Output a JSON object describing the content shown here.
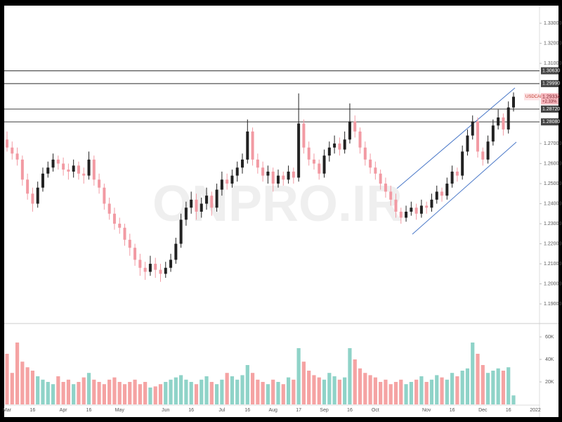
{
  "chart_data": {
    "type": "candlestick",
    "symbol": "USDCAD",
    "change": "+2.33%",
    "watermark": "ONPRO.IR",
    "last": {
      "value": 1.29334,
      "label": "1.29334"
    },
    "up_color": "#222222",
    "down_color": "#f29aa3",
    "volume_up_color": "#8fd3c8",
    "volume_down_color": "#f5a3a3",
    "ylim": [
      1.1809,
      1.3388
    ],
    "yticks": [
      {
        "value": 1.33,
        "label": "1.33000"
      },
      {
        "value": 1.32,
        "label": "1.32000"
      },
      {
        "value": 1.31,
        "label": "1.31000"
      },
      {
        "value": 1.27,
        "label": "1.27000"
      },
      {
        "value": 1.26,
        "label": "1.26000"
      },
      {
        "value": 1.25,
        "label": "1.25000"
      },
      {
        "value": 1.24,
        "label": "1.24000"
      },
      {
        "value": 1.23,
        "label": "1.23000"
      },
      {
        "value": 1.22,
        "label": "1.22000"
      },
      {
        "value": 1.21,
        "label": "1.21000"
      },
      {
        "value": 1.2,
        "label": "1.20000"
      },
      {
        "value": 1.19,
        "label": "1.19000"
      }
    ],
    "levels": [
      {
        "value": 1.3063,
        "label": "1.30630"
      },
      {
        "value": 1.2999,
        "label": "1.29990"
      },
      {
        "value": 1.2872,
        "label": "1.28720"
      },
      {
        "value": 1.2808,
        "label": "1.28080"
      }
    ],
    "volume_ylim": [
      0,
      70000
    ],
    "volume_ticks": [
      {
        "value": 60000,
        "label": "60K"
      },
      {
        "value": 40000,
        "label": "40K"
      },
      {
        "value": 20000,
        "label": "20K"
      }
    ],
    "x_extra_label": "2022",
    "categories": [
      "Mar",
      null,
      null,
      null,
      null,
      "16",
      null,
      null,
      null,
      null,
      null,
      "Apr",
      null,
      null,
      null,
      null,
      "16",
      null,
      null,
      null,
      null,
      null,
      "May",
      null,
      null,
      null,
      null,
      null,
      null,
      null,
      null,
      "Jun",
      null,
      null,
      null,
      null,
      "16",
      null,
      null,
      null,
      null,
      null,
      "Jul",
      null,
      null,
      null,
      null,
      "16",
      null,
      null,
      null,
      null,
      "Aug",
      null,
      null,
      null,
      null,
      "17",
      null,
      null,
      null,
      null,
      "Sep",
      null,
      null,
      null,
      null,
      "16",
      null,
      null,
      null,
      null,
      "Oct",
      null,
      null,
      null,
      null,
      null,
      null,
      null,
      null,
      null,
      "Nov",
      null,
      null,
      null,
      null,
      "16",
      null,
      null,
      null,
      null,
      null,
      "Dec",
      null,
      null,
      null,
      null,
      "16",
      null
    ],
    "candles": [
      [
        1.272,
        1.276,
        1.266,
        1.268
      ],
      [
        1.268,
        1.271,
        1.262,
        1.265
      ],
      [
        1.265,
        1.268,
        1.259,
        1.262
      ],
      [
        1.262,
        1.264,
        1.249,
        1.252
      ],
      [
        1.252,
        1.255,
        1.242,
        1.245
      ],
      [
        1.245,
        1.248,
        1.236,
        1.24
      ],
      [
        1.24,
        1.251,
        1.238,
        1.248
      ],
      [
        1.248,
        1.258,
        1.246,
        1.255
      ],
      [
        1.255,
        1.261,
        1.253,
        1.258
      ],
      [
        1.258,
        1.265,
        1.256,
        1.262
      ],
      [
        1.262,
        1.264,
        1.257,
        1.26
      ],
      [
        1.26,
        1.263,
        1.254,
        1.257
      ],
      [
        1.257,
        1.26,
        1.252,
        1.256
      ],
      [
        1.256,
        1.262,
        1.253,
        1.259
      ],
      [
        1.259,
        1.261,
        1.252,
        1.255
      ],
      [
        1.255,
        1.258,
        1.25,
        1.254
      ],
      [
        1.254,
        1.266,
        1.252,
        1.262
      ],
      [
        1.262,
        1.264,
        1.249,
        1.252
      ],
      [
        1.252,
        1.255,
        1.245,
        1.248
      ],
      [
        1.248,
        1.25,
        1.237,
        1.24
      ],
      [
        1.24,
        1.243,
        1.232,
        1.235
      ],
      [
        1.235,
        1.238,
        1.227,
        1.23
      ],
      [
        1.23,
        1.233,
        1.225,
        1.228
      ],
      [
        1.228,
        1.23,
        1.219,
        1.222
      ],
      [
        1.222,
        1.225,
        1.214,
        1.218
      ],
      [
        1.218,
        1.22,
        1.209,
        1.212
      ],
      [
        1.212,
        1.215,
        1.204,
        1.208
      ],
      [
        1.208,
        1.211,
        1.202,
        1.206
      ],
      [
        1.206,
        1.214,
        1.204,
        1.21
      ],
      [
        1.21,
        1.213,
        1.203,
        1.207
      ],
      [
        1.207,
        1.21,
        1.201,
        1.205
      ],
      [
        1.205,
        1.211,
        1.203,
        1.208
      ],
      [
        1.208,
        1.215,
        1.206,
        1.212
      ],
      [
        1.212,
        1.223,
        1.21,
        1.22
      ],
      [
        1.22,
        1.235,
        1.218,
        1.232
      ],
      [
        1.232,
        1.241,
        1.229,
        1.238
      ],
      [
        1.238,
        1.246,
        1.235,
        1.242
      ],
      [
        1.242,
        1.245,
        1.232,
        1.236
      ],
      [
        1.236,
        1.243,
        1.233,
        1.24
      ],
      [
        1.24,
        1.248,
        1.237,
        1.244
      ],
      [
        1.244,
        1.246,
        1.234,
        1.238
      ],
      [
        1.238,
        1.25,
        1.236,
        1.247
      ],
      [
        1.247,
        1.256,
        1.244,
        1.252
      ],
      [
        1.252,
        1.255,
        1.247,
        1.25
      ],
      [
        1.25,
        1.257,
        1.248,
        1.254
      ],
      [
        1.254,
        1.261,
        1.251,
        1.258
      ],
      [
        1.258,
        1.265,
        1.255,
        1.262
      ],
      [
        1.262,
        1.282,
        1.26,
        1.276
      ],
      [
        1.276,
        1.278,
        1.259,
        1.262
      ],
      [
        1.262,
        1.265,
        1.255,
        1.258
      ],
      [
        1.258,
        1.261,
        1.251,
        1.254
      ],
      [
        1.254,
        1.259,
        1.25,
        1.256
      ],
      [
        1.256,
        1.258,
        1.246,
        1.25
      ],
      [
        1.25,
        1.257,
        1.248,
        1.254
      ],
      [
        1.254,
        1.256,
        1.249,
        1.252
      ],
      [
        1.252,
        1.259,
        1.25,
        1.256
      ],
      [
        1.256,
        1.258,
        1.25,
        1.253
      ],
      [
        1.253,
        1.295,
        1.251,
        1.28
      ],
      [
        1.28,
        1.282,
        1.265,
        1.268
      ],
      [
        1.268,
        1.271,
        1.259,
        1.262
      ],
      [
        1.262,
        1.265,
        1.257,
        1.26
      ],
      [
        1.26,
        1.262,
        1.252,
        1.255
      ],
      [
        1.255,
        1.267,
        1.253,
        1.264
      ],
      [
        1.264,
        1.271,
        1.261,
        1.268
      ],
      [
        1.268,
        1.274,
        1.265,
        1.27
      ],
      [
        1.27,
        1.273,
        1.264,
        1.267
      ],
      [
        1.267,
        1.276,
        1.265,
        1.272
      ],
      [
        1.272,
        1.29,
        1.27,
        1.281
      ],
      [
        1.281,
        1.284,
        1.273,
        1.276
      ],
      [
        1.276,
        1.278,
        1.265,
        1.268
      ],
      [
        1.268,
        1.271,
        1.259,
        1.262
      ],
      [
        1.262,
        1.265,
        1.255,
        1.258
      ],
      [
        1.258,
        1.261,
        1.252,
        1.255
      ],
      [
        1.255,
        1.257,
        1.247,
        1.25
      ],
      [
        1.25,
        1.253,
        1.243,
        1.246
      ],
      [
        1.246,
        1.249,
        1.239,
        1.242
      ],
      [
        1.242,
        1.245,
        1.233,
        1.236
      ],
      [
        1.236,
        1.238,
        1.23,
        1.233
      ],
      [
        1.233,
        1.239,
        1.231,
        1.236
      ],
      [
        1.236,
        1.241,
        1.234,
        1.238
      ],
      [
        1.238,
        1.24,
        1.232,
        1.235
      ],
      [
        1.235,
        1.242,
        1.233,
        1.239
      ],
      [
        1.239,
        1.241,
        1.235,
        1.238
      ],
      [
        1.238,
        1.245,
        1.236,
        1.242
      ],
      [
        1.242,
        1.249,
        1.24,
        1.246
      ],
      [
        1.246,
        1.248,
        1.241,
        1.244
      ],
      [
        1.244,
        1.253,
        1.242,
        1.25
      ],
      [
        1.25,
        1.259,
        1.248,
        1.256
      ],
      [
        1.256,
        1.258,
        1.251,
        1.254
      ],
      [
        1.254,
        1.269,
        1.252,
        1.266
      ],
      [
        1.266,
        1.277,
        1.264,
        1.274
      ],
      [
        1.274,
        1.284,
        1.272,
        1.281
      ],
      [
        1.281,
        1.283,
        1.263,
        1.266
      ],
      [
        1.266,
        1.268,
        1.259,
        1.262
      ],
      [
        1.262,
        1.274,
        1.26,
        1.271
      ],
      [
        1.271,
        1.282,
        1.269,
        1.279
      ],
      [
        1.279,
        1.287,
        1.277,
        1.283
      ],
      [
        1.283,
        1.285,
        1.274,
        1.277
      ],
      [
        1.277,
        1.291,
        1.275,
        1.288
      ],
      [
        1.288,
        1.2955,
        1.286,
        1.29334
      ]
    ],
    "volume": [
      45000,
      28000,
      55000,
      38000,
      33000,
      30000,
      25000,
      22000,
      20000,
      18000,
      25000,
      20000,
      22000,
      18000,
      20000,
      24000,
      28000,
      22000,
      20000,
      18000,
      22000,
      24000,
      20000,
      18000,
      20000,
      22000,
      18000,
      20000,
      15000,
      16000,
      18000,
      20000,
      22000,
      24000,
      26000,
      22000,
      20000,
      18000,
      22000,
      25000,
      20000,
      18000,
      22000,
      28000,
      25000,
      22000,
      26000,
      35000,
      28000,
      22000,
      20000,
      18000,
      22000,
      20000,
      18000,
      24000,
      22000,
      50000,
      38000,
      30000,
      26000,
      24000,
      22000,
      28000,
      25000,
      22000,
      24000,
      50000,
      40000,
      32000,
      28000,
      26000,
      24000,
      20000,
      22000,
      18000,
      20000,
      22000,
      18000,
      20000,
      22000,
      25000,
      20000,
      22000,
      26000,
      24000,
      22000,
      28000,
      25000,
      30000,
      32000,
      55000,
      45000,
      35000,
      28000,
      30000,
      32000,
      30000,
      33000,
      8000
    ]
  }
}
